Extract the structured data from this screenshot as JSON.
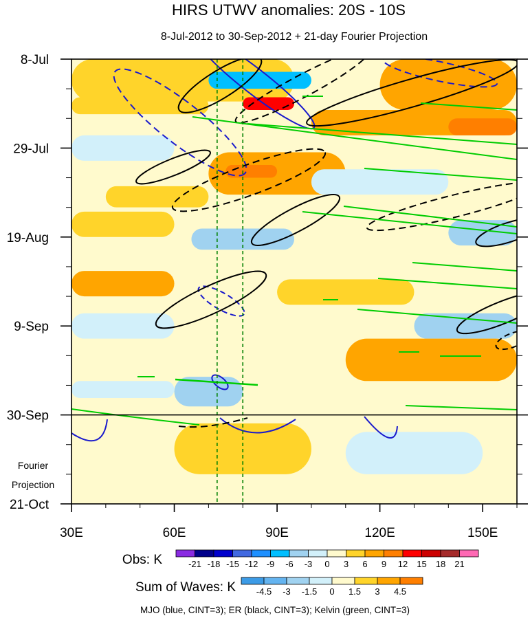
{
  "chart_data": {
    "type": "heatmap",
    "title": "HIRS UTWV anomalies: 20S - 10S",
    "subtitle": "8-Jul-2012 to 30-Sep-2012 + 21-day Fourier Projection",
    "x_axis": {
      "range": [
        30,
        160
      ],
      "ticks": [
        30,
        60,
        90,
        120,
        150
      ],
      "tick_labels": [
        "30E",
        "60E",
        "90E",
        "120E",
        "150E"
      ]
    },
    "y_axis": {
      "range_days": [
        0,
        105
      ],
      "ticks": [
        0,
        21,
        42,
        63,
        84,
        105
      ],
      "tick_labels": [
        "8-Jul",
        "29-Jul",
        "19-Aug",
        "9-Sep",
        "30-Sep",
        "21-Oct"
      ],
      "projection_start_day": 84,
      "projection_label": [
        "Fourier",
        "Projection"
      ]
    },
    "reference_longitudes": [
      72.5,
      80
    ],
    "obs_colorbar": {
      "label": "Obs: K",
      "levels": [
        -21,
        -18,
        -15,
        -12,
        -9,
        -6,
        -3,
        0,
        3,
        6,
        9,
        12,
        15,
        18,
        21
      ],
      "colors": [
        "#8a2be2",
        "#00008b",
        "#0000cd",
        "#4169e1",
        "#1e90ff",
        "#00bfff",
        "#a0d2f0",
        "#d2f0fa",
        "#fffacd",
        "#ffd42a",
        "#ffa500",
        "#ff7f00",
        "#ff0000",
        "#cc0000",
        "#a52a2a",
        "#ff69b4"
      ]
    },
    "waves_colorbar": {
      "label": "Sum of Waves: K",
      "levels": [
        -4.5,
        -3,
        -1.5,
        0,
        1.5,
        3,
        4.5
      ],
      "colors": [
        "#3c9be6",
        "#64b4f0",
        "#a0d2f0",
        "#d2f0fa",
        "#fffacd",
        "#ffd42a",
        "#ffa500",
        "#ff7f00"
      ]
    },
    "note": "MJO (blue, CINT=3); ER (black, CINT=3); Kelvin (green, CINT=3)",
    "anomaly_bands": [
      {
        "lon": [
          30,
          95
        ],
        "day": [
          0,
          10
        ],
        "level": 3
      },
      {
        "lon": [
          70,
          100
        ],
        "day": [
          3,
          7
        ],
        "level": -9
      },
      {
        "lon": [
          120,
          160
        ],
        "day": [
          0,
          12
        ],
        "level": 6
      },
      {
        "lon": [
          80,
          95
        ],
        "day": [
          9,
          12
        ],
        "level": 12
      },
      {
        "lon": [
          30,
          70
        ],
        "day": [
          9,
          13
        ],
        "level": 3
      },
      {
        "lon": [
          100,
          160
        ],
        "day": [
          12,
          18
        ],
        "level": 6
      },
      {
        "lon": [
          140,
          160
        ],
        "day": [
          14,
          18
        ],
        "level": 9
      },
      {
        "lon": [
          30,
          60
        ],
        "day": [
          18,
          24
        ],
        "level": -3
      },
      {
        "lon": [
          70,
          110
        ],
        "day": [
          22,
          32
        ],
        "level": 6
      },
      {
        "lon": [
          75,
          90
        ],
        "day": [
          25,
          28
        ],
        "level": 9
      },
      {
        "lon": [
          100,
          140
        ],
        "day": [
          26,
          32
        ],
        "level": -3
      },
      {
        "lon": [
          40,
          70
        ],
        "day": [
          30,
          35
        ],
        "level": 3
      },
      {
        "lon": [
          30,
          60
        ],
        "day": [
          36,
          42
        ],
        "level": 3
      },
      {
        "lon": [
          65,
          95
        ],
        "day": [
          40,
          45
        ],
        "level": -6
      },
      {
        "lon": [
          140,
          160
        ],
        "day": [
          38,
          44
        ],
        "level": -6
      },
      {
        "lon": [
          30,
          60
        ],
        "day": [
          50,
          56
        ],
        "level": 6
      },
      {
        "lon": [
          90,
          130
        ],
        "day": [
          52,
          58
        ],
        "level": 3
      },
      {
        "lon": [
          30,
          60
        ],
        "day": [
          60,
          66
        ],
        "level": -3
      },
      {
        "lon": [
          130,
          160
        ],
        "day": [
          60,
          66
        ],
        "level": -6
      },
      {
        "lon": [
          110,
          160
        ],
        "day": [
          66,
          76
        ],
        "level": 6
      },
      {
        "lon": [
          60,
          80
        ],
        "day": [
          75,
          82
        ],
        "level": -6
      },
      {
        "lon": [
          30,
          60
        ],
        "day": [
          76,
          80
        ],
        "level": -3
      },
      {
        "lon": [
          60,
          100
        ],
        "day": [
          86,
          98
        ],
        "level": 1.5
      },
      {
        "lon": [
          110,
          150
        ],
        "day": [
          88,
          98
        ],
        "level": -1.5
      }
    ]
  }
}
